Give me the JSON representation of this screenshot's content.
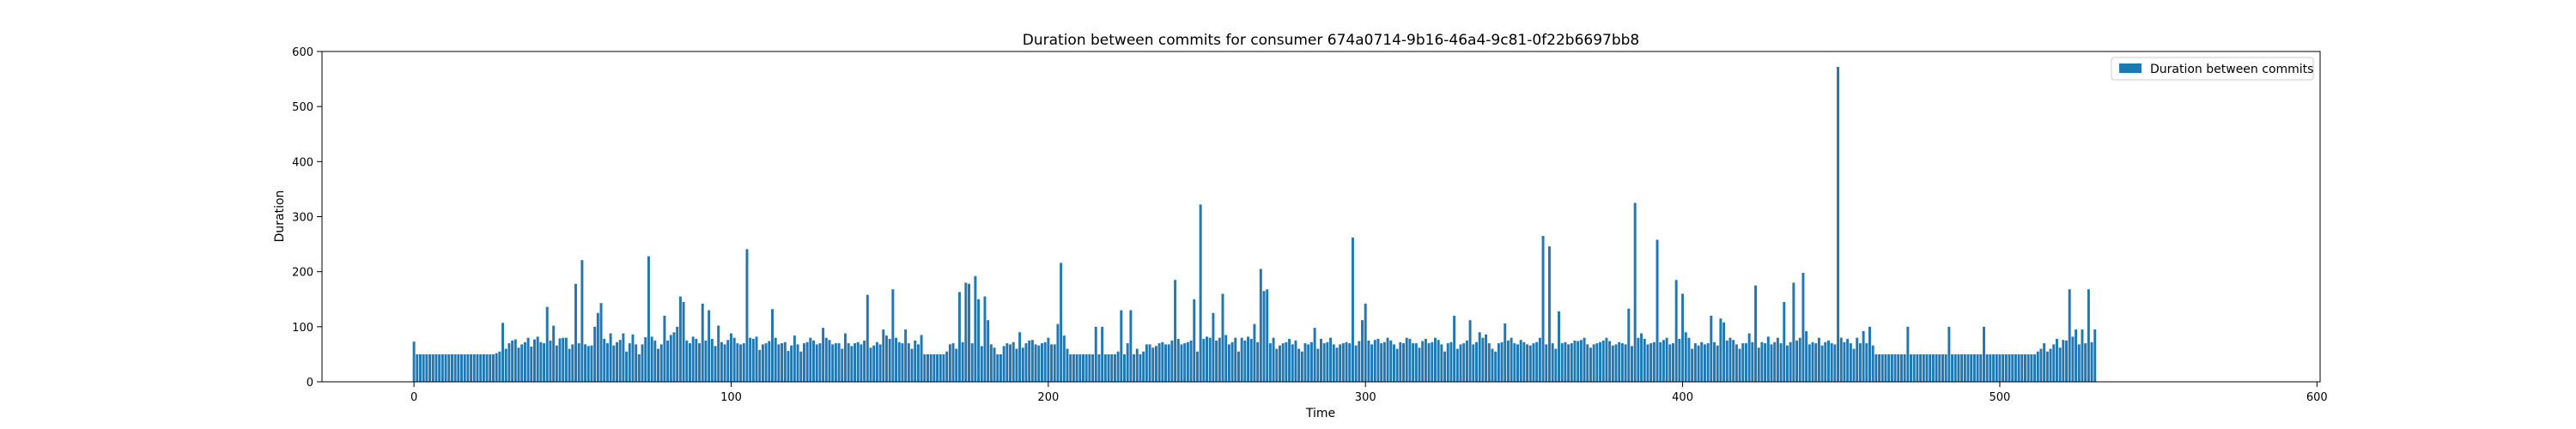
{
  "chart_data": {
    "type": "bar",
    "title": "Duration between commits for consumer 674a0714-9b16-46a4-9c81-0f22b6697bb8",
    "xlabel": "Time",
    "ylabel": "Duration",
    "xlim": [
      -29,
      601
    ],
    "ylim": [
      0,
      600
    ],
    "xticks": [
      0,
      100,
      200,
      300,
      400,
      500,
      600
    ],
    "yticks": [
      0,
      100,
      200,
      300,
      400,
      500,
      600
    ],
    "grid": false,
    "legend_position": "top-right",
    "series": [
      {
        "name": "Duration between commits",
        "color": "#1f77b4",
        "x_start": 0,
        "values": [
          73,
          50,
          50,
          50,
          50,
          50,
          50,
          50,
          50,
          50,
          50,
          50,
          50,
          50,
          50,
          50,
          50,
          50,
          50,
          50,
          50,
          50,
          50,
          50,
          50,
          50,
          52,
          55,
          107,
          60,
          70,
          75,
          77,
          62,
          68,
          72,
          80,
          64,
          77,
          82,
          72,
          70,
          136,
          75,
          102,
          66,
          79,
          80,
          80,
          60,
          68,
          178,
          70,
          221,
          68,
          65,
          66,
          100,
          125,
          143,
          78,
          70,
          88,
          66,
          72,
          76,
          88,
          55,
          70,
          86,
          68,
          50,
          68,
          81,
          228,
          82,
          75,
          60,
          68,
          120,
          75,
          85,
          90,
          100,
          155,
          145,
          75,
          70,
          82,
          78,
          70,
          142,
          75,
          130,
          78,
          65,
          102,
          72,
          68,
          76,
          88,
          80,
          70,
          68,
          70,
          241,
          80,
          78,
          82,
          58,
          68,
          70,
          74,
          132,
          80,
          68,
          70,
          72,
          56,
          66,
          84,
          68,
          55,
          70,
          72,
          80,
          75,
          68,
          70,
          98,
          80,
          76,
          68,
          70,
          70,
          60,
          88,
          70,
          65,
          70,
          72,
          68,
          75,
          158,
          62,
          66,
          72,
          68,
          95,
          84,
          78,
          168,
          80,
          72,
          70,
          95,
          70,
          60,
          75,
          68,
          85,
          50,
          50,
          50,
          50,
          50,
          50,
          50,
          55,
          68,
          70,
          60,
          163,
          72,
          180,
          178,
          70,
          192,
          150,
          65,
          155,
          112,
          68,
          62,
          50,
          50,
          65,
          70,
          68,
          72,
          60,
          90,
          62,
          70,
          75,
          76,
          68,
          66,
          70,
          72,
          80,
          68,
          68,
          105,
          216,
          84,
          60,
          50,
          50,
          50,
          50,
          50,
          50,
          50,
          50,
          100,
          50,
          100,
          50,
          50,
          50,
          50,
          55,
          130,
          50,
          70,
          130,
          50,
          60,
          50,
          55,
          68,
          68,
          62,
          65,
          70,
          72,
          68,
          68,
          75,
          185,
          78,
          68,
          70,
          72,
          75,
          150,
          55,
          322,
          78,
          82,
          80,
          125,
          75,
          80,
          160,
          85,
          68,
          72,
          80,
          55,
          80,
          75,
          82,
          78,
          105,
          72,
          205,
          165,
          168,
          70,
          80,
          60,
          66,
          70,
          72,
          78,
          68,
          75,
          60,
          55,
          70,
          68,
          72,
          98,
          60,
          78,
          70,
          72,
          80,
          68,
          62,
          68,
          70,
          72,
          70,
          262,
          66,
          74,
          112,
          142,
          75,
          68,
          76,
          78,
          70,
          72,
          80,
          75,
          68,
          60,
          72,
          70,
          80,
          78,
          70,
          70,
          62,
          74,
          78,
          70,
          72,
          80,
          76,
          68,
          55,
          70,
          72,
          120,
          60,
          68,
          70,
          75,
          112,
          68,
          72,
          90,
          80,
          86,
          70,
          60,
          55,
          70,
          72,
          106,
          75,
          80,
          70,
          68,
          76,
          72,
          68,
          66,
          70,
          72,
          80,
          265,
          68,
          246,
          70,
          60,
          128,
          70,
          72,
          68,
          70,
          75,
          74,
          76,
          80,
          68,
          62,
          68,
          70,
          72,
          75,
          80,
          74,
          66,
          68,
          72,
          70,
          68,
          133,
          65,
          325,
          80,
          88,
          78,
          68,
          70,
          72,
          258,
          72,
          76,
          80,
          68,
          70,
          185,
          78,
          160,
          90,
          80,
          60,
          70,
          66,
          72,
          68,
          70,
          120,
          72,
          66,
          115,
          108,
          75,
          80,
          76,
          68,
          60,
          70,
          70,
          88,
          72,
          175,
          62,
          72,
          70,
          82,
          68,
          72,
          80,
          70,
          145,
          66,
          72,
          180,
          75,
          80,
          198,
          92,
          68,
          72,
          70,
          80,
          66,
          72,
          75,
          70,
          68,
          572,
          80,
          72,
          78,
          70,
          60,
          80,
          70,
          92,
          70,
          100,
          66,
          50,
          50,
          50,
          50,
          50,
          50,
          50,
          50,
          50,
          50,
          100,
          50,
          50,
          50,
          50,
          50,
          50,
          50,
          50,
          50,
          50,
          50,
          50,
          100,
          50,
          50,
          50,
          50,
          50,
          50,
          50,
          50,
          50,
          50,
          100,
          50,
          50,
          50,
          50,
          50,
          50,
          50,
          50,
          50,
          50,
          50,
          50,
          50,
          50,
          50,
          50,
          55,
          60,
          70,
          55,
          60,
          68,
          78,
          62,
          76,
          75,
          168,
          82,
          95,
          68,
          95,
          70,
          168,
          72,
          95
        ]
      }
    ]
  }
}
